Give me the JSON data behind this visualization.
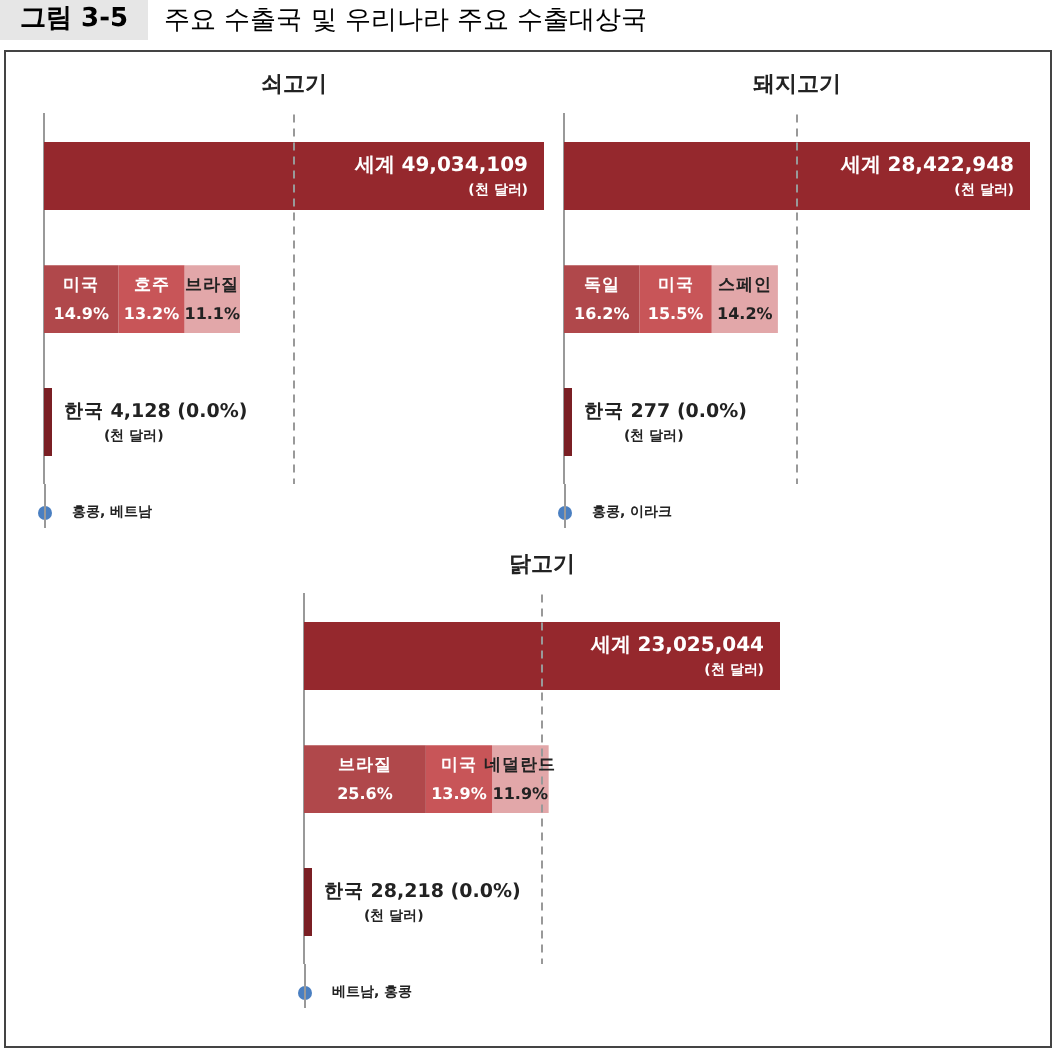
{
  "chart_data": [
    {
      "type": "other",
      "title": "주요 수출국 및 우리나라 주요 수출대상국",
      "annotations": [
        "그림 3-5"
      ]
    },
    {
      "type": "bar",
      "orientation": "horizontal",
      "stacked": true,
      "title": "쇠고기",
      "categories": [
        null,
        null,
        null
      ],
      "xlim": [
        0,
        100
      ],
      "tick_labels": false,
      "legend": false,
      "ref_lines": [
        {
          "axis": "x",
          "value": 50,
          "line_style": "dashed",
          "color": "#999999"
        }
      ],
      "annotations": [
        "세계 49,034,109\n(천 달러)",
        "홍콩, 베트남"
      ],
      "series": [
        {
          "color": "#95282d",
          "values": [
            100,
            null,
            null
          ]
        },
        {
          "name": "미국",
          "color": "#b0484b",
          "values": [
            null,
            14.9,
            null
          ],
          "value_labels": [
            null,
            "14.9%",
            null
          ]
        },
        {
          "name": "호주",
          "color": "#c85558",
          "values": [
            null,
            13.2,
            null
          ],
          "value_labels": [
            null,
            "13.2%",
            null
          ]
        },
        {
          "name": "브라질",
          "color": "#e2a7a9",
          "values": [
            null,
            11.1,
            null
          ],
          "value_labels": [
            null,
            "11.1%",
            null
          ]
        },
        {
          "name": "한국",
          "color": "#7a1f24",
          "values": [
            null,
            null,
            0.0
          ],
          "value_labels": [
            null,
            null,
            "4,128 (0.0%)\n(천 달러)"
          ]
        }
      ]
    },
    {
      "type": "bar",
      "orientation": "horizontal",
      "stacked": true,
      "title": "돼지고기",
      "categories": [
        null,
        null,
        null
      ],
      "xlim": [
        0,
        100
      ],
      "tick_labels": false,
      "legend": false,
      "ref_lines": [
        {
          "axis": "x",
          "value": 50,
          "line_style": "dashed",
          "color": "#999999"
        }
      ],
      "annotations": [
        "세계 28,422,948\n(천 달러)",
        "홍콩, 이라크"
      ],
      "series": [
        {
          "color": "#95282d",
          "values": [
            100,
            null,
            null
          ]
        },
        {
          "name": "독일",
          "color": "#b0484b",
          "values": [
            null,
            16.2,
            null
          ],
          "value_labels": [
            null,
            "16.2%",
            null
          ]
        },
        {
          "name": "미국",
          "color": "#c85558",
          "values": [
            null,
            15.5,
            null
          ],
          "value_labels": [
            null,
            "15.5%",
            null
          ]
        },
        {
          "name": "스페인",
          "color": "#e2a7a9",
          "values": [
            null,
            14.2,
            null
          ],
          "value_labels": [
            null,
            "14.2%",
            null
          ]
        },
        {
          "name": "한국",
          "color": "#7a1f24",
          "values": [
            null,
            null,
            0.0
          ],
          "value_labels": [
            null,
            null,
            "277 (0.0%)\n(천 달러)"
          ]
        }
      ]
    },
    {
      "type": "bar",
      "orientation": "horizontal",
      "stacked": true,
      "title": "닭고기",
      "categories": [
        null,
        null,
        null
      ],
      "xlim": [
        0,
        100
      ],
      "tick_labels": false,
      "legend": false,
      "ref_lines": [
        {
          "axis": "x",
          "value": 50,
          "line_style": "dashed",
          "color": "#999999"
        }
      ],
      "annotations": [
        "세계 23,025,044\n(천 달러)",
        "베트남, 홍콩"
      ],
      "series": [
        {
          "color": "#95282d",
          "values": [
            100,
            null,
            null
          ]
        },
        {
          "name": "브라질",
          "color": "#b0484b",
          "values": [
            null,
            25.6,
            null
          ],
          "value_labels": [
            null,
            "25.6%",
            null
          ]
        },
        {
          "name": "미국",
          "color": "#c85558",
          "values": [
            null,
            13.9,
            null
          ],
          "value_labels": [
            null,
            "13.9%",
            null
          ]
        },
        {
          "name": "네덜란드",
          "color": "#e2a7a9",
          "values": [
            null,
            11.9,
            null
          ],
          "value_labels": [
            null,
            "11.9%",
            null
          ]
        },
        {
          "name": "한국",
          "color": "#7a1f24",
          "values": [
            null,
            null,
            0.0
          ],
          "value_labels": [
            null,
            null,
            "28,218 (0.0%)\n(천 달러)"
          ]
        }
      ]
    }
  ]
}
